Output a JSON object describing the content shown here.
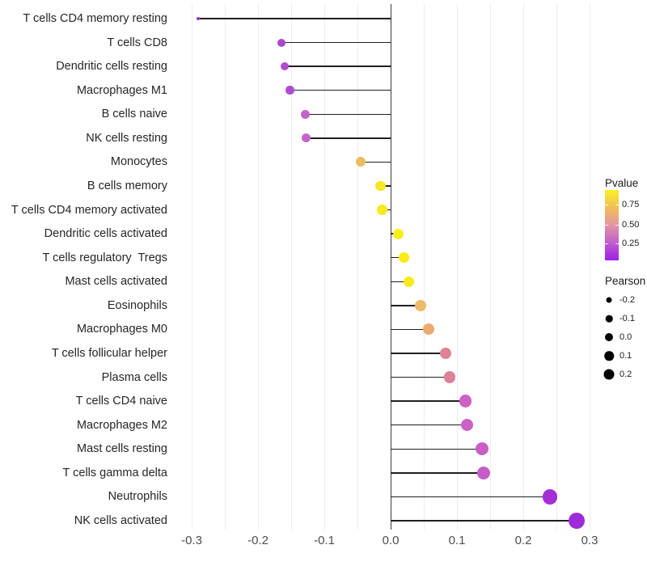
{
  "chart_data": {
    "type": "scatter",
    "variant": "lollipop",
    "title": "",
    "xlabel": "",
    "ylabel": "",
    "x_ticks": [
      "-0.3",
      "-0.2",
      "-0.1",
      "0.0",
      "0.1",
      "0.2",
      "0.3"
    ],
    "xlim": [
      -0.325,
      0.32
    ],
    "grid": "on",
    "zero_baseline": true,
    "points": [
      {
        "label": "T cells CD4 memory resting",
        "pearson": -0.29,
        "color": "#9536D4",
        "diameter": 4.5
      },
      {
        "label": "T cells CD8",
        "pearson": -0.165,
        "color": "#AC48CE",
        "diameter": 10
      },
      {
        "label": "Dendritic cells resting",
        "pearson": -0.16,
        "color": "#AF4CCD",
        "diameter": 10
      },
      {
        "label": "Macrophages M1",
        "pearson": -0.152,
        "color": "#AF4BD0",
        "diameter": 10.5
      },
      {
        "label": "B cells naive",
        "pearson": -0.129,
        "color": "#C263CB",
        "diameter": 11
      },
      {
        "label": "NK cells resting",
        "pearson": -0.128,
        "color": "#C466C9",
        "diameter": 11
      },
      {
        "label": "Monocytes",
        "pearson": -0.045,
        "color": "#EDBC5D",
        "diameter": 12
      },
      {
        "label": "B cells memory",
        "pearson": -0.015,
        "color": "#F8E723",
        "diameter": 12.5
      },
      {
        "label": "T cells CD4 memory activated",
        "pearson": -0.013,
        "color": "#F9E81E",
        "diameter": 12.5
      },
      {
        "label": "Dendritic cells activated",
        "pearson": 0.012,
        "color": "#FAED18",
        "diameter": 13
      },
      {
        "label": "T cells regulatory  Tregs",
        "pearson": 0.02,
        "color": "#FAEC16",
        "diameter": 13
      },
      {
        "label": "Mast cells activated",
        "pearson": 0.027,
        "color": "#F9EA1A",
        "diameter": 13
      },
      {
        "label": "Eosinophils",
        "pearson": 0.045,
        "color": "#EFBA69",
        "diameter": 13.5
      },
      {
        "label": "Macrophages M0",
        "pearson": 0.057,
        "color": "#ECAB6E",
        "diameter": 14
      },
      {
        "label": "T cells follicular helper",
        "pearson": 0.083,
        "color": "#DE8395",
        "diameter": 14.5
      },
      {
        "label": "Plasma cells",
        "pearson": 0.089,
        "color": "#DC8197",
        "diameter": 14.5
      },
      {
        "label": "T cells CD4 naive",
        "pearson": 0.113,
        "color": "#CC62C3",
        "diameter": 15.5
      },
      {
        "label": "Macrophages M2",
        "pearson": 0.115,
        "color": "#CB61C4",
        "diameter": 15.5
      },
      {
        "label": "Mast cells resting",
        "pearson": 0.138,
        "color": "#C95FC5",
        "diameter": 16
      },
      {
        "label": "T cells gamma delta",
        "pearson": 0.14,
        "color": "#C55DC8",
        "diameter": 16
      },
      {
        "label": "Neutrophils",
        "pearson": 0.24,
        "color": "#A32DD6",
        "diameter": 18.5
      },
      {
        "label": "NK cells activated",
        "pearson": 0.28,
        "color": "#9D2BD9",
        "diameter": 20
      }
    ],
    "legend_position": "right",
    "legend_color": {
      "title": "Pvalue",
      "tick_labels": [
        "0.75",
        "0.50",
        "0.25"
      ],
      "gradient_top_to_bottom": [
        "#FAF026",
        "#F3BE55",
        "#E295A4",
        "#C25DCE",
        "#9B1FE8"
      ]
    },
    "legend_size": {
      "title": "Pearson",
      "entries": [
        {
          "label": "-0.2",
          "diameter": 7
        },
        {
          "label": "-0.1",
          "diameter": 8.5
        },
        {
          "label": "0.0",
          "diameter": 10
        },
        {
          "label": "0.1",
          "diameter": 11.5
        },
        {
          "label": "0.2",
          "diameter": 13
        }
      ],
      "dot_color": "#000000"
    },
    "style": {
      "gridline_color": "#ececec",
      "stem_color": "#1f1f1f",
      "zero_line_color": "#3c3c3c",
      "background": "#ffffff"
    }
  },
  "layout_note": "lollipop chart of Pearson correlations per immune cell type"
}
